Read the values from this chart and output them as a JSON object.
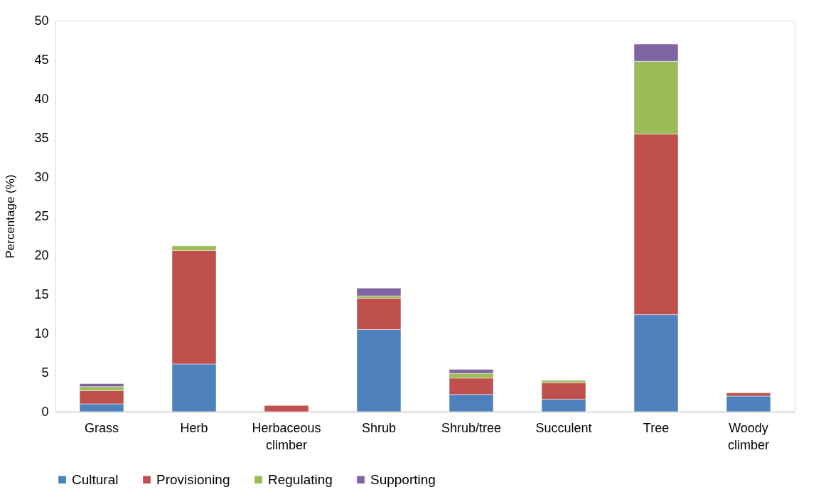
{
  "chart_data": {
    "type": "bar",
    "stacked": true,
    "ylabel": "Percentage (%)",
    "categories": [
      "Grass",
      "Herb",
      "Herbaceous climber",
      "Shrub",
      "Shrub/tree",
      "Succulent",
      "Tree",
      "Woody climber"
    ],
    "series": [
      {
        "name": "Cultural",
        "color": "#4f81bd",
        "values": [
          1.0,
          6.1,
          null,
          10.5,
          2.2,
          1.6,
          12.4,
          2.0
        ]
      },
      {
        "name": "Provisioning",
        "color": "#c0504d",
        "values": [
          1.7,
          14.5,
          0.8,
          4.0,
          2.1,
          2.1,
          23.1,
          0.4
        ]
      },
      {
        "name": "Regulating",
        "color": "#9bbb59",
        "values": [
          0.5,
          0.6,
          null,
          0.3,
          0.6,
          0.3,
          9.3,
          null
        ]
      },
      {
        "name": "Supporting",
        "color": "#8064a2",
        "values": [
          0.4,
          null,
          null,
          1.0,
          0.5,
          null,
          2.2,
          null
        ]
      }
    ],
    "ylim": [
      0,
      50
    ],
    "yticks": [
      0,
      5,
      10,
      15,
      20,
      25,
      30,
      35,
      40,
      45,
      50
    ],
    "grid": false,
    "legend": "bottom"
  }
}
